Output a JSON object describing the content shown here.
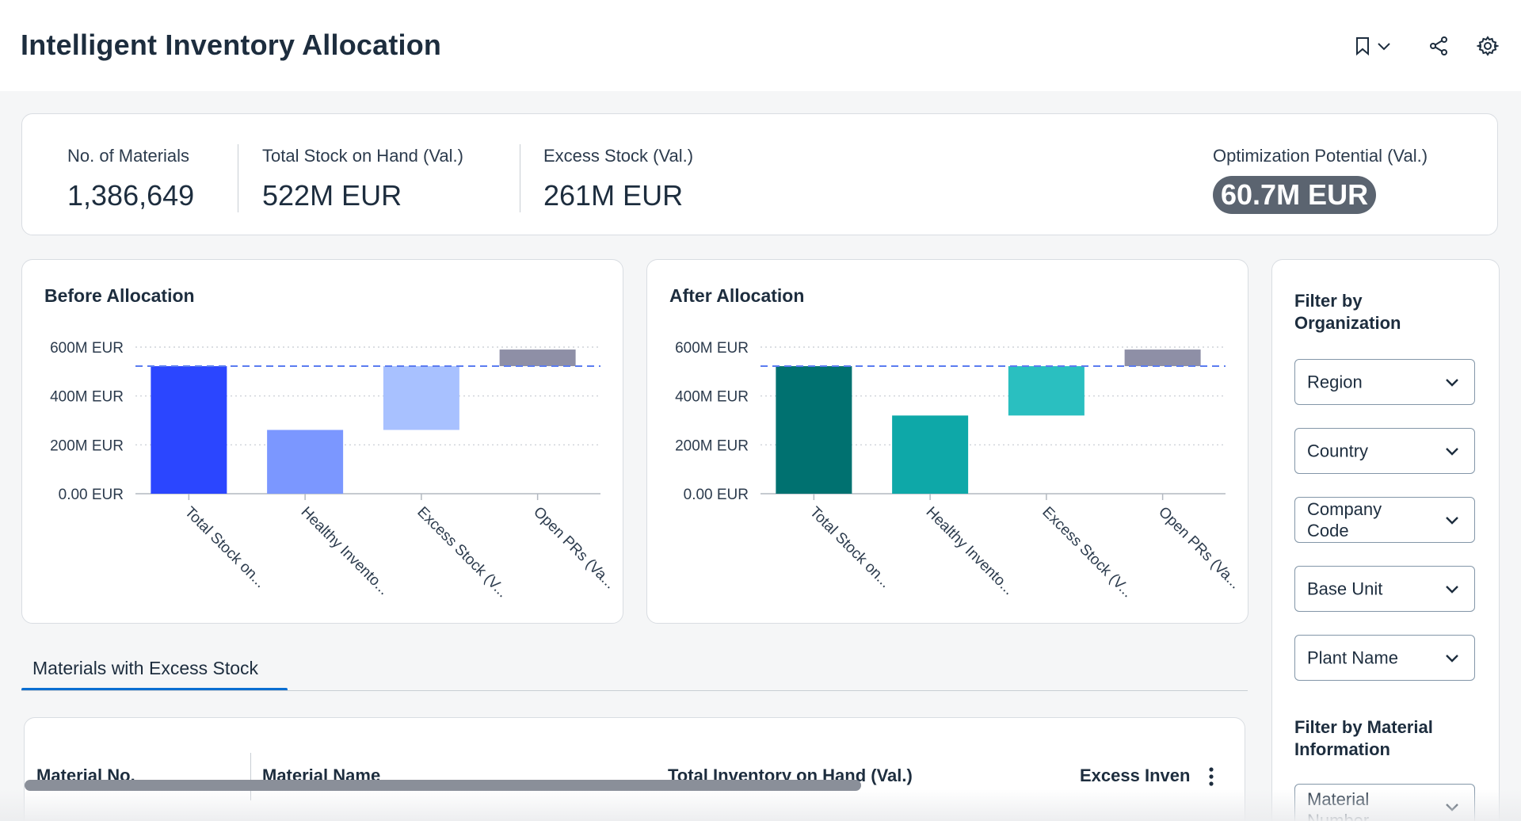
{
  "header": {
    "title": "Intelligent Inventory Allocation",
    "icons": [
      "bookmark-icon",
      "chevron-down-icon",
      "share-icon",
      "gear-icon"
    ]
  },
  "kpis": [
    {
      "label": "No. of Materials",
      "value": "1,386,649"
    },
    {
      "label": "Total Stock on Hand (Val.)",
      "value": "522M EUR"
    },
    {
      "label": "Excess Stock (Val.)",
      "value": "261M EUR"
    },
    {
      "label": "Optimization Potential (Val.)",
      "value": "60.7M EUR"
    }
  ],
  "chart_data": [
    {
      "type": "bar",
      "title": "Before Allocation",
      "categories": [
        "Total Stock on...",
        "Healthy Invento...",
        "Excess Stock (V...",
        "Open PRs (Va..."
      ],
      "bars": [
        {
          "low": 0,
          "high": 522,
          "color": "#2b46ff"
        },
        {
          "low": 0,
          "high": 261,
          "color": "#7b97ff"
        },
        {
          "low": 261,
          "high": 522,
          "color": "#a8c1ff"
        },
        {
          "low": 522,
          "high": 590,
          "color": "#8e8fa6"
        }
      ],
      "reference_line": 522,
      "yticks": [
        {
          "value": 0,
          "label": "0.00 EUR"
        },
        {
          "value": 200,
          "label": "200M EUR"
        },
        {
          "value": 400,
          "label": "400M EUR"
        },
        {
          "value": 600,
          "label": "600M EUR"
        }
      ],
      "ylim": [
        0,
        600
      ],
      "grid": true
    },
    {
      "type": "bar",
      "title": "After Allocation",
      "categories": [
        "Total Stock on...",
        "Healthy Invento...",
        "Excess Stock (V...",
        "Open PRs (Va..."
      ],
      "bars": [
        {
          "low": 0,
          "high": 522,
          "color": "#007170"
        },
        {
          "low": 0,
          "high": 320,
          "color": "#0ea8a8"
        },
        {
          "low": 320,
          "high": 522,
          "color": "#2abfc0"
        },
        {
          "low": 522,
          "high": 590,
          "color": "#8e8fa6"
        }
      ],
      "reference_line": 522,
      "yticks": [
        {
          "value": 0,
          "label": "0.00 EUR"
        },
        {
          "value": 200,
          "label": "200M EUR"
        },
        {
          "value": 400,
          "label": "400M EUR"
        },
        {
          "value": 600,
          "label": "600M EUR"
        }
      ],
      "ylim": [
        0,
        600
      ],
      "grid": true
    }
  ],
  "filters": {
    "org_heading": "Filter by Organization",
    "org_fields": [
      "Region",
      "Country",
      "Company Code",
      "Base Unit",
      "Plant Name"
    ],
    "material_heading": "Filter by Material Information",
    "material_fields": [
      "Material Number"
    ]
  },
  "tabs": [
    {
      "label": "Materials with Excess Stock",
      "selected": true
    }
  ],
  "table": {
    "columns": [
      "Material No.",
      "Material Name",
      "Total Inventory on Hand (Val.)",
      "Excess Inven"
    ],
    "more_icon": "more-vertical-icon"
  }
}
